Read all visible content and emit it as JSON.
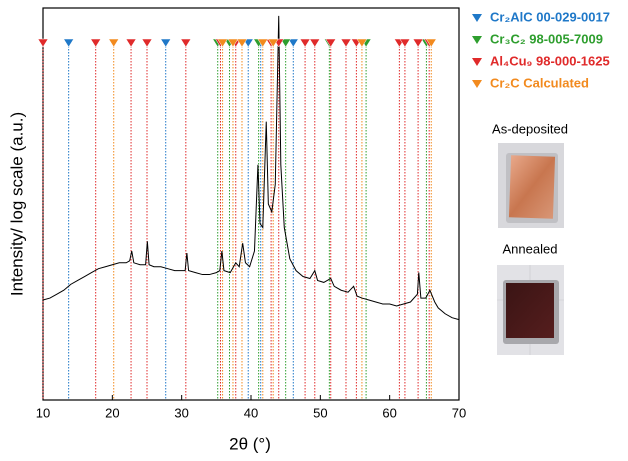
{
  "chart_data": {
    "type": "line",
    "xlabel": "2θ (°)",
    "ylabel": "Intensity/ log scale (a.u.)",
    "xlim": [
      10,
      70
    ],
    "xticks": [
      10,
      20,
      30,
      40,
      50,
      60,
      70
    ],
    "ylim": [
      0,
      100
    ],
    "x": [
      10,
      11,
      12,
      13,
      14,
      15,
      16,
      17,
      18,
      19,
      20,
      21,
      22,
      22.5,
      22.8,
      23.1,
      24,
      24.8,
      25.05,
      25.3,
      26,
      27,
      28,
      29,
      30,
      30.5,
      30.75,
      31,
      32,
      33,
      34,
      35,
      35.5,
      35.8,
      36.1,
      37,
      37.8,
      38.3,
      38.8,
      39.2,
      39.8,
      40.5,
      41.0,
      41.3,
      41.7,
      42.2,
      42.5,
      43.0,
      43.5,
      44.0,
      44.3,
      44.8,
      45.2,
      45.6,
      46.5,
      47.5,
      48.5,
      49.2,
      49.6,
      50.5,
      51.5,
      52,
      53,
      54,
      54.8,
      55.3,
      56,
      57,
      58,
      59,
      60,
      61,
      62,
      63,
      64,
      64.2,
      64.5,
      65.2,
      65.8,
      66.5,
      67,
      68,
      69,
      70
    ],
    "series": [
      {
        "color": "#000000",
        "values": [
          25.5,
          26,
          27,
          28,
          29.5,
          30.5,
          31.5,
          32.5,
          33.5,
          34,
          34.5,
          35,
          35,
          35.5,
          38,
          35,
          34.5,
          34.5,
          40.5,
          34.5,
          34,
          34,
          33.5,
          33,
          33,
          33,
          37.5,
          33,
          32.5,
          32,
          32,
          32.5,
          33,
          38,
          33,
          32.5,
          35,
          34,
          40,
          35,
          34,
          38,
          60,
          45,
          44,
          71,
          50,
          48,
          55,
          98,
          60,
          44,
          40,
          36,
          33,
          31.5,
          31,
          33,
          30.5,
          30,
          31,
          29,
          28,
          27.5,
          29,
          26.5,
          26,
          25.5,
          25,
          24.5,
          24.5,
          24,
          24.5,
          25,
          27,
          32.5,
          26,
          26,
          28,
          25,
          23.5,
          22,
          21,
          20.5
        ]
      }
    ],
    "references": [
      {
        "name": "Cr₂AlC 00-029-0017",
        "color": "#1f78c8",
        "positions": [
          13.7,
          27.7,
          39.6,
          41.4,
          46.1
        ]
      },
      {
        "name": "Cr₃C₂ 98-005-7009",
        "color": "#2e9e2e",
        "positions": [
          35.2,
          36.9,
          41.1,
          45.0,
          51.3,
          56.6,
          65.3
        ]
      },
      {
        "name": "Al₄Cu₉ 98-000-1625",
        "color": "#e02a2a",
        "positions": [
          10.0,
          17.6,
          22.7,
          25.0,
          30.6,
          35.6,
          37.8,
          42.9,
          44.0,
          47.8,
          49.2,
          51.5,
          53.7,
          55.2,
          61.4,
          62.2,
          64.1,
          65.7
        ]
      },
      {
        "name": "Cr₂C Calculated",
        "color": "#f28a1e",
        "positions": [
          20.2,
          35.9,
          37.4,
          38.7,
          41.7,
          43.2,
          56.0,
          66.0
        ]
      }
    ]
  },
  "images": [
    {
      "label": "As-deposited"
    },
    {
      "label": "Annealed"
    }
  ]
}
